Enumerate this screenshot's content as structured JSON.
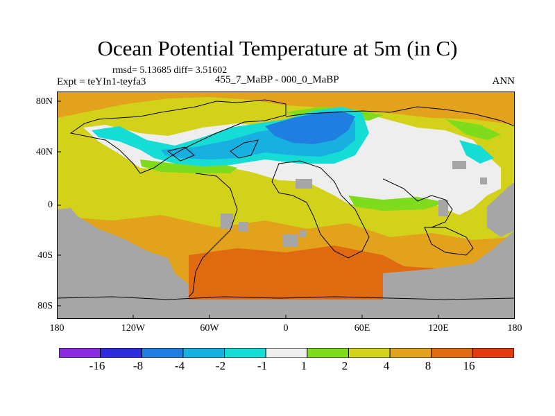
{
  "title": "Ocean Potential Temperature at 5m (in C)",
  "stats": "rmsd= 5.13685  diff= 3.51602",
  "expt": "Expt = teYIn1-teyfa3",
  "period": "455_7_MaBP - 000_0_MaBP",
  "season": "ANN",
  "y_axis_labels": [
    "80N",
    "40N",
    "0",
    "40S",
    "80S"
  ],
  "x_axis_labels": [
    "180",
    "120W",
    "60W",
    "0",
    "60E",
    "120E",
    "180"
  ],
  "colorbar": {
    "labels": [
      "-16",
      "-8",
      "-4",
      "-2",
      "-1",
      "1",
      "2",
      "4",
      "8",
      "16"
    ],
    "colors": [
      "#8a2be2",
      "#2d2dde",
      "#1f7fe0",
      "#18b0e0",
      "#16dcd6",
      "#eeeeee",
      "#7fdc1c",
      "#d2d21a",
      "#e3a21c",
      "#e06a10",
      "#e33a12"
    ]
  },
  "palette": {
    "ocean_c2": "#d2d21a",
    "ocean_c4": "#e3a21c",
    "ocean_c8": "#e06a10",
    "land_missing": "#a6a6a6",
    "near_zero": "#eeeeee",
    "c1": "#7fdc1c",
    "cm1": "#16dcd6",
    "cm2": "#18b0e0",
    "cm4": "#1f7fe0"
  }
}
